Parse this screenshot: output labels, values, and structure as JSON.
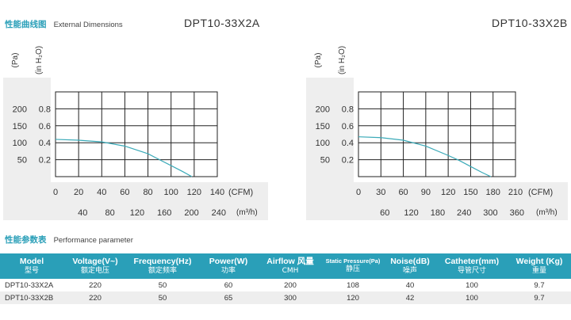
{
  "curves_section": {
    "title_cn": "性能曲线图",
    "title_en": "External Dimensions"
  },
  "performance_section": {
    "title_cn": "性能参数表",
    "title_en": "Performance parameter"
  },
  "charts": [
    {
      "model": "DPT10-33X2A",
      "y_unit_pa": "(Pa)",
      "y_unit_inh2o": "(in H₂O)",
      "pa_ticks": [
        "200",
        "150",
        "100",
        "50"
      ],
      "inh2o_ticks": [
        "0.8",
        "0.6",
        "0.4",
        "0.2"
      ],
      "x_cfm_ticks": [
        "0",
        "20",
        "40",
        "60",
        "80",
        "100",
        "120",
        "140"
      ],
      "x_cfm_unit": "(CFM)",
      "x_cmh_ticks": [
        "40",
        "80",
        "120",
        "160",
        "200",
        "240"
      ],
      "x_cmh_unit": "(m³/h)"
    },
    {
      "model": "DPT10-33X2B",
      "y_unit_pa": "(Pa)",
      "y_unit_inh2o": "(in H₂O)",
      "pa_ticks": [
        "200",
        "150",
        "100",
        "50"
      ],
      "inh2o_ticks": [
        "0.8",
        "0.6",
        "0.4",
        "0.2"
      ],
      "x_cfm_ticks": [
        "0",
        "30",
        "60",
        "90",
        "120",
        "150",
        "180",
        "210"
      ],
      "x_cfm_unit": "(CFM)",
      "x_cmh_ticks": [
        "60",
        "120",
        "180",
        "240",
        "300",
        "360"
      ],
      "x_cmh_unit": "(m³/h)"
    }
  ],
  "chart_data": [
    {
      "type": "line",
      "title": "DPT10-33X2A",
      "xlabel": "(CFM)",
      "ylabel": "(in H2O)",
      "xlim": [
        0,
        140
      ],
      "ylim": [
        0,
        1.0
      ],
      "series": [
        {
          "name": "DPT10-33X2A",
          "x": [
            0,
            20,
            40,
            60,
            80,
            90,
            100,
            110,
            118
          ],
          "y": [
            0.44,
            0.43,
            0.41,
            0.36,
            0.27,
            0.2,
            0.13,
            0.06,
            0.0
          ]
        }
      ]
    },
    {
      "type": "line",
      "title": "DPT10-33X2B",
      "xlabel": "(CFM)",
      "ylabel": "(in H2O)",
      "xlim": [
        0,
        210
      ],
      "ylim": [
        0,
        1.0
      ],
      "series": [
        {
          "name": "DPT10-33X2B",
          "x": [
            0,
            30,
            60,
            90,
            120,
            135,
            150,
            165,
            177
          ],
          "y": [
            0.47,
            0.46,
            0.43,
            0.36,
            0.25,
            0.19,
            0.12,
            0.05,
            0.0
          ]
        }
      ]
    }
  ],
  "table": {
    "headers": [
      {
        "en": "Model",
        "cn": "型号"
      },
      {
        "en": "Voltage(V~)",
        "cn": "额定电压"
      },
      {
        "en": "Frequency(Hz)",
        "cn": "额定频率"
      },
      {
        "en": "Power(W)",
        "cn": "功率"
      },
      {
        "en": "Airflow 风量",
        "cn": "CMH"
      },
      {
        "en_small": "Static Pressure(Pa)",
        "cn": "静压"
      },
      {
        "en": "Noise(dB)",
        "cn": "噪声"
      },
      {
        "en": "Catheter(mm)",
        "cn": "导管尺寸"
      },
      {
        "en": "Weight (Kg)",
        "cn": "重量"
      }
    ],
    "rows": [
      [
        "DPT10-33X2A",
        "220",
        "50",
        "60",
        "200",
        "108",
        "40",
        "100",
        "9.7"
      ],
      [
        "DPT10-33X2B",
        "220",
        "50",
        "65",
        "300",
        "120",
        "42",
        "100",
        "9.7"
      ]
    ]
  }
}
